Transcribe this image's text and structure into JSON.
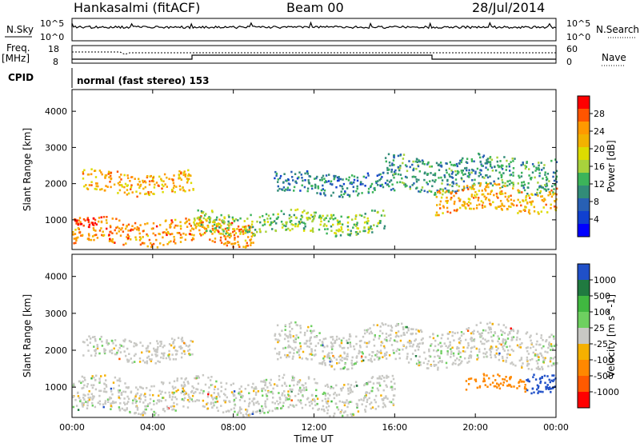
{
  "header": {
    "title": "Hankasalmi (fitACF)",
    "beam": "Beam 00",
    "date": "28/Jul/2014"
  },
  "strip": {
    "nsky_label": "N.Sky",
    "nsky_ticks": [
      "10^5",
      "10^0"
    ],
    "nsearch_label": "N.Search",
    "nsearch_ticks": [
      "10^5",
      "10^0"
    ],
    "freq_label": "Freq.",
    "freq_unit": "[MHz]",
    "freq_ticks": [
      "18",
      "8"
    ],
    "nave_label": "Nave",
    "nave_ticks": [
      "60",
      "0"
    ],
    "cpid_label": "CPID",
    "cpid_text": "normal (fast stereo) 153"
  },
  "chart_data": [
    {
      "type": "heatmap",
      "title": "",
      "xlabel": "Time UT",
      "ylabel": "Slant Range [km]",
      "colorbar_label": "Power [dB]",
      "colorbar_ticks": [
        "28",
        "24",
        "20",
        "16",
        "12",
        "8",
        "4"
      ],
      "colorbar_colors": [
        "#ff0000",
        "#ff5500",
        "#ff9900",
        "#f3b200",
        "#dcdc00",
        "#a8d23c",
        "#3cb45a",
        "#328c78",
        "#2860b4",
        "#1040d0",
        "#0000ff"
      ],
      "xlim": [
        "00:00",
        "24:00"
      ],
      "ylim": [
        180,
        4600
      ],
      "x_ticks": [
        "00:00",
        "04:00",
        "08:00",
        "12:00",
        "16:00",
        "20:00",
        "00:00"
      ],
      "y_ticks": [
        1000,
        2000,
        3000,
        4000
      ],
      "echo_bands": [
        {
          "t": [
            0.5,
            6.0
          ],
          "range": [
            1700,
            2300
          ],
          "power_db": 22
        },
        {
          "t": [
            0.0,
            9.0
          ],
          "range": [
            300,
            1000
          ],
          "power_db": 24
        },
        {
          "t": [
            0.0,
            1.2
          ],
          "range": [
            700,
            1000
          ],
          "power_db": 30
        },
        {
          "t": [
            6.0,
            15.5
          ],
          "range": [
            600,
            1200
          ],
          "power_db": 14
        },
        {
          "t": [
            10.0,
            16.0
          ],
          "range": [
            1700,
            2300
          ],
          "power_db": 8
        },
        {
          "t": [
            15.5,
            24.0
          ],
          "range": [
            1800,
            2700
          ],
          "power_db": 10
        },
        {
          "t": [
            18.0,
            24.0
          ],
          "range": [
            1200,
            1900
          ],
          "power_db": 22
        }
      ]
    },
    {
      "type": "heatmap",
      "title": "",
      "xlabel": "Time UT",
      "ylabel": "Slant Range [km]",
      "colorbar_label": "Velocity [m s^-1]",
      "colorbar_ticks": [
        "1000",
        "500",
        "100",
        "25",
        "-25",
        "-100",
        "-500",
        "-1000"
      ],
      "colorbar_colors": [
        "#2050c8",
        "#207a40",
        "#40b840",
        "#6ed060",
        "#c8c8c4",
        "#f5b000",
        "#ff8800",
        "#ff5a00",
        "#ff0000"
      ],
      "xlim": [
        "00:00",
        "24:00"
      ],
      "ylim": [
        180,
        4600
      ],
      "x_ticks": [
        "00:00",
        "04:00",
        "08:00",
        "12:00",
        "16:00",
        "20:00",
        "00:00"
      ],
      "y_ticks": [
        1000,
        2000,
        3000,
        4000
      ],
      "echo_bands": [
        {
          "t": [
            0.5,
            6.0
          ],
          "range": [
            1700,
            2300
          ],
          "velocity": 0
        },
        {
          "t": [
            0.0,
            16.0
          ],
          "range": [
            300,
            1200
          ],
          "velocity": 0
        },
        {
          "t": [
            10.0,
            24.0
          ],
          "range": [
            1600,
            2600
          ],
          "velocity": 0
        },
        {
          "t": [
            19.5,
            22.5
          ],
          "range": [
            900,
            1300
          ],
          "velocity": -300
        },
        {
          "t": [
            22.5,
            24.0
          ],
          "range": [
            900,
            1500
          ],
          "velocity": 800
        }
      ]
    }
  ]
}
